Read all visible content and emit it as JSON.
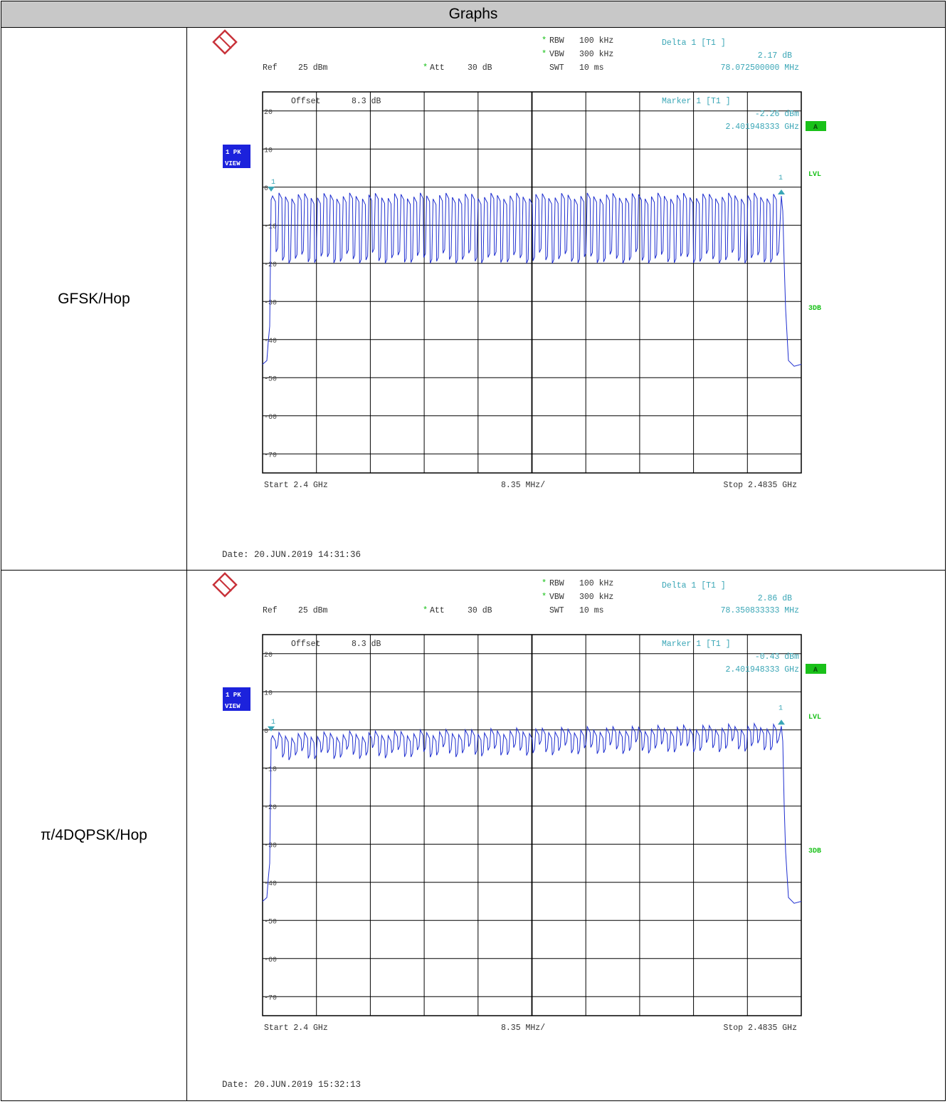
{
  "table": {
    "header": "Graphs"
  },
  "colors": {
    "trace": "#1f2fd0",
    "cyan_text": "#3aa6b6",
    "green": "#19c119",
    "blue_box": "#1c22dc",
    "logo": "#c8323a"
  },
  "plots": [
    {
      "label": "GFSK/Hop",
      "rbw": "RBW",
      "rbw_val": "100 kHz",
      "vbw": "VBW",
      "vbw_val": "300 kHz",
      "swt": "SWT",
      "swt_val": "10 ms",
      "ref": "Ref",
      "ref_val": "25 dBm",
      "att": "Att",
      "att_val": "30 dB",
      "delta_title": "Delta 1 [T1 ]",
      "delta_db": "2.17 dB",
      "delta_freq": "78.072500000 MHz",
      "offset": "Offset",
      "offset_val": "8.3 dB",
      "marker_title": "Marker 1 [T1 ]",
      "marker_dbm": "-2.26 dBm",
      "marker_freq": "2.401948333 GHz",
      "box_a": "A",
      "lvl": "LVL",
      "db3": "3DB",
      "pk": "1 PK",
      "view": "VIEW",
      "start": "Start 2.4 GHz",
      "span": "8.35 MHz/",
      "stop": "Stop 2.4835 GHz",
      "date": "Date: 20.JUN.2019  14:31:36",
      "marker_num": "1",
      "yticks": [
        "20",
        "10",
        "0",
        "-10",
        "-20",
        "-30",
        "-40",
        "-50",
        "-60",
        "-70"
      ],
      "floor": -46.5,
      "top": -2.3,
      "dip": -17,
      "slope": 0.0
    },
    {
      "label": "π/4DQPSK/Hop",
      "rbw": "RBW",
      "rbw_val": "100 kHz",
      "vbw": "VBW",
      "vbw_val": "300 kHz",
      "swt": "SWT",
      "swt_val": "10 ms",
      "ref": "Ref",
      "ref_val": "25 dBm",
      "att": "Att",
      "att_val": "30 dB",
      "delta_title": "Delta 1 [T1 ]",
      "delta_db": "2.86 dB",
      "delta_freq": "78.350833333 MHz",
      "offset": "Offset",
      "offset_val": "8.3 dB",
      "marker_title": "Marker 1 [T1 ]",
      "marker_dbm": "-0.43 dBm",
      "marker_freq": "2.401948333 GHz",
      "box_a": "A",
      "lvl": "LVL",
      "db3": "3DB",
      "pk": "1 PK",
      "view": "VIEW",
      "start": "Start 2.4 GHz",
      "span": "8.35 MHz/",
      "stop": "Stop 2.4835 GHz",
      "date": "Date: 20.JUN.2019  15:32:13",
      "marker_num": "1",
      "yticks": [
        "20",
        "10",
        "0",
        "-10",
        "-20",
        "-30",
        "-40",
        "-50",
        "-60",
        "-70"
      ],
      "floor": -45,
      "top": -1.5,
      "dip": -5,
      "slope": 2.5
    }
  ],
  "chart_data": [
    {
      "type": "line",
      "title": "",
      "xlabel": "",
      "ylabel": "",
      "xlim_ghz": [
        2.4,
        2.4835
      ],
      "ylim_dbm": [
        -75,
        25
      ],
      "grid": true,
      "series": [
        {
          "name": "",
          "description_points": [
            [
              2.4,
              -46.5
            ],
            [
              2.4019,
              -2.3
            ],
            [
              2.48,
              -0.1
            ],
            [
              2.4835,
              -46.0
            ]
          ]
        }
      ],
      "marker": {
        "freq_ghz": 2.401948333,
        "level_dbm": -2.26
      },
      "delta": {
        "freq_mhz": 78.0725,
        "level_db": 2.17
      }
    },
    {
      "type": "line",
      "title": "",
      "xlabel": "",
      "ylabel": "",
      "xlim_ghz": [
        2.4,
        2.4835
      ],
      "ylim_dbm": [
        -75,
        25
      ],
      "grid": true,
      "series": [
        {
          "name": "",
          "description_points": [
            [
              2.4,
              -45
            ],
            [
              2.4019,
              -0.43
            ],
            [
              2.48,
              2.43
            ],
            [
              2.4835,
              -45
            ]
          ]
        }
      ],
      "marker": {
        "freq_ghz": 2.401948333,
        "level_dbm": -0.43
      },
      "delta": {
        "freq_mhz": 78.350833333,
        "level_db": 2.86
      }
    }
  ]
}
